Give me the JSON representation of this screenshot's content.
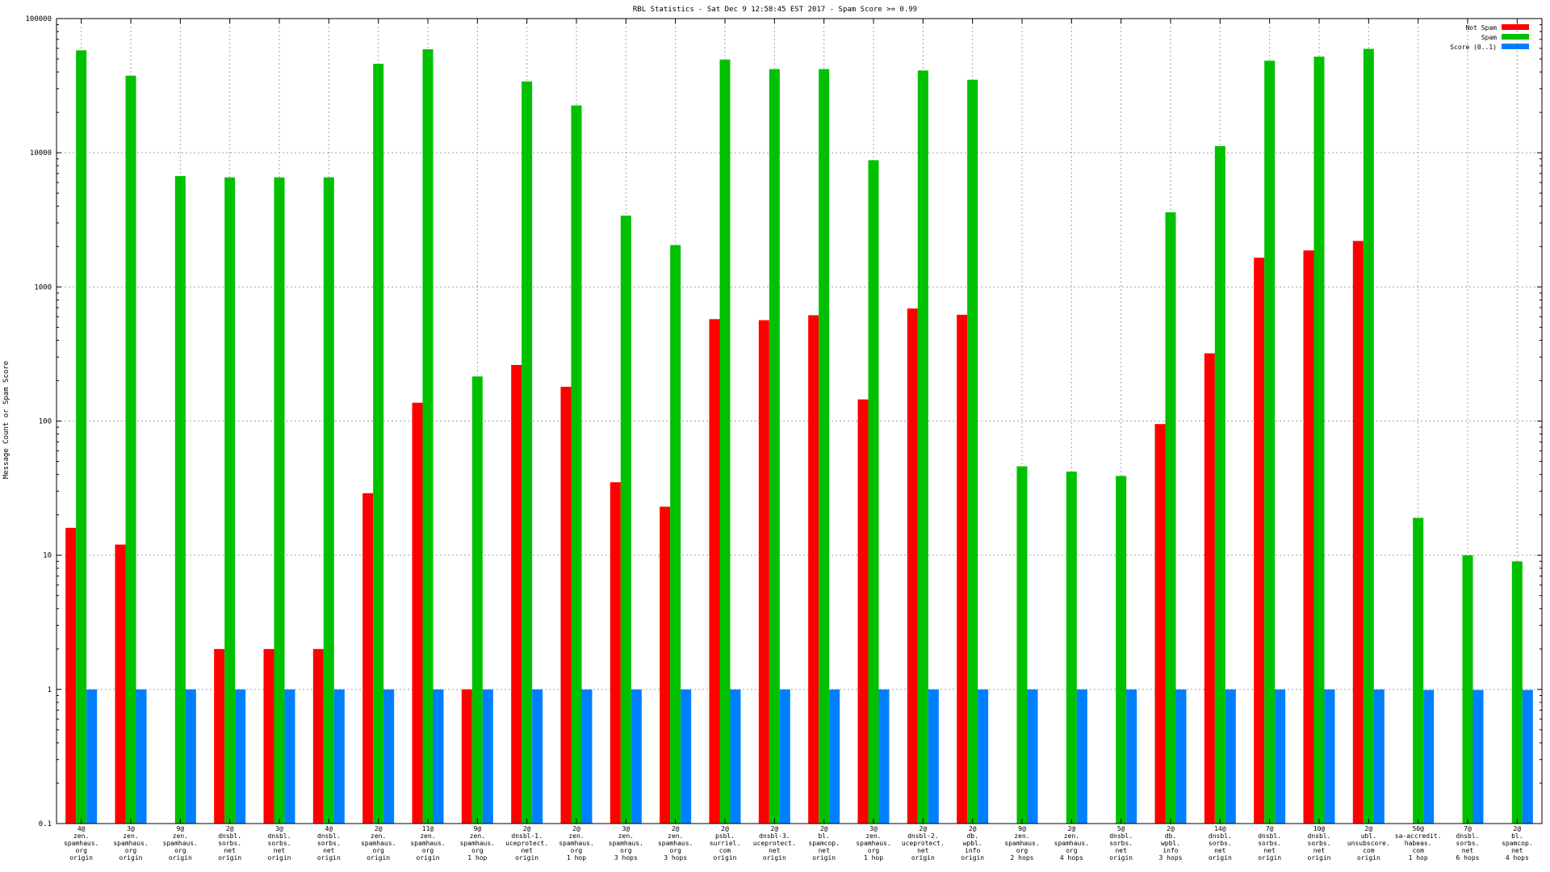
{
  "chart_data": {
    "type": "bar",
    "title": "RBL Statistics - Sat Dec  9 12:58:45 EST 2017 - Spam Score >= 0.99",
    "xlabel": "",
    "ylabel": "Message Count or Spam Score",
    "yscale": "log",
    "ylim": [
      0.1,
      100000
    ],
    "yticks": [
      "0.1",
      "1",
      "10",
      "100",
      "1000",
      "10000",
      "100000"
    ],
    "grid": true,
    "legend_position": "top-right",
    "categories": [
      [
        "4@",
        "zen.",
        "spamhaus.",
        "org",
        "origin"
      ],
      [
        "3@",
        "zen.",
        "spamhaus.",
        "org",
        "origin"
      ],
      [
        "9@",
        "zen.",
        "spamhaus.",
        "org",
        "origin"
      ],
      [
        "2@",
        "dnsbl.",
        "sorbs.",
        "net",
        "origin"
      ],
      [
        "3@",
        "dnsbl.",
        "sorbs.",
        "net",
        "origin"
      ],
      [
        "4@",
        "dnsbl.",
        "sorbs.",
        "net",
        "origin"
      ],
      [
        "2@",
        "zen.",
        "spamhaus.",
        "org",
        "origin"
      ],
      [
        "11@",
        "zen.",
        "spamhaus.",
        "org",
        "origin"
      ],
      [
        "9@",
        "zen.",
        "spamhaus.",
        "org",
        "1 hop"
      ],
      [
        "2@",
        "dnsbl-1.",
        "uceprotect.",
        "net",
        "origin"
      ],
      [
        "2@",
        "zen.",
        "spamhaus.",
        "org",
        "1 hop"
      ],
      [
        "3@",
        "zen.",
        "spamhaus.",
        "org",
        "3 hops"
      ],
      [
        "2@",
        "zen.",
        "spamhaus.",
        "org",
        "3 hops"
      ],
      [
        "2@",
        "psbl.",
        "surriel.",
        "com",
        "origin"
      ],
      [
        "2@",
        "dnsbl-3.",
        "uceprotect.",
        "net",
        "origin"
      ],
      [
        "2@",
        "bl.",
        "spamcop.",
        "net",
        "origin"
      ],
      [
        "3@",
        "zen.",
        "spamhaus.",
        "org",
        "1 hop"
      ],
      [
        "2@",
        "dnsbl-2.",
        "uceprotect.",
        "net",
        "origin"
      ],
      [
        "2@",
        "db.",
        "wpbl.",
        "info",
        "origin"
      ],
      [
        "9@",
        "zen.",
        "spamhaus.",
        "org",
        "2 hops"
      ],
      [
        "2@",
        "zen.",
        "spamhaus.",
        "org",
        "4 hops"
      ],
      [
        "5@",
        "dnsbl.",
        "sorbs.",
        "net",
        "origin"
      ],
      [
        "2@",
        "db.",
        "wpbl.",
        "info",
        "3 hops"
      ],
      [
        "14@",
        "dnsbl.",
        "sorbs.",
        "net",
        "origin"
      ],
      [
        "7@",
        "dnsbl.",
        "sorbs.",
        "net",
        "origin"
      ],
      [
        "10@",
        "dnsbl.",
        "sorbs.",
        "net",
        "origin"
      ],
      [
        "2@",
        "ubl.",
        "unsubscore.",
        "com",
        "origin"
      ],
      [
        "50@",
        "sa-accredit.",
        "habeas.",
        "com",
        "1 hop"
      ],
      [
        "7@",
        "dnsbl.",
        "sorbs.",
        "net",
        "6 hops"
      ],
      [
        "2@",
        "bl.",
        "spamcop.",
        "net",
        "4 hops"
      ]
    ],
    "series": [
      {
        "name": "Not Spam",
        "color": "#ff0000",
        "values": [
          16,
          12,
          null,
          2,
          2,
          2,
          29,
          137,
          1,
          262,
          180,
          35,
          23,
          575,
          565,
          615,
          145,
          690,
          620,
          null,
          null,
          null,
          95,
          320,
          1650,
          1870,
          2200,
          null,
          null,
          null
        ]
      },
      {
        "name": "Spam",
        "color": "#00c000",
        "values": [
          58000,
          37500,
          6700,
          6550,
          6550,
          6550,
          46000,
          59000,
          215,
          34000,
          22500,
          3400,
          2050,
          49500,
          42000,
          42000,
          8800,
          41000,
          35000,
          46,
          42,
          39,
          3600,
          11200,
          48500,
          52000,
          59500,
          19,
          10,
          9
        ]
      },
      {
        "name": "Score (0..1)",
        "color": "#0080ff",
        "values": [
          1,
          1,
          1,
          1,
          1,
          1,
          1,
          1,
          1,
          1,
          1,
          1,
          1,
          1,
          1,
          1,
          1,
          1,
          1,
          1,
          1,
          1,
          1,
          1,
          1,
          1,
          1,
          0.99,
          0.99,
          0.99
        ]
      }
    ]
  }
}
